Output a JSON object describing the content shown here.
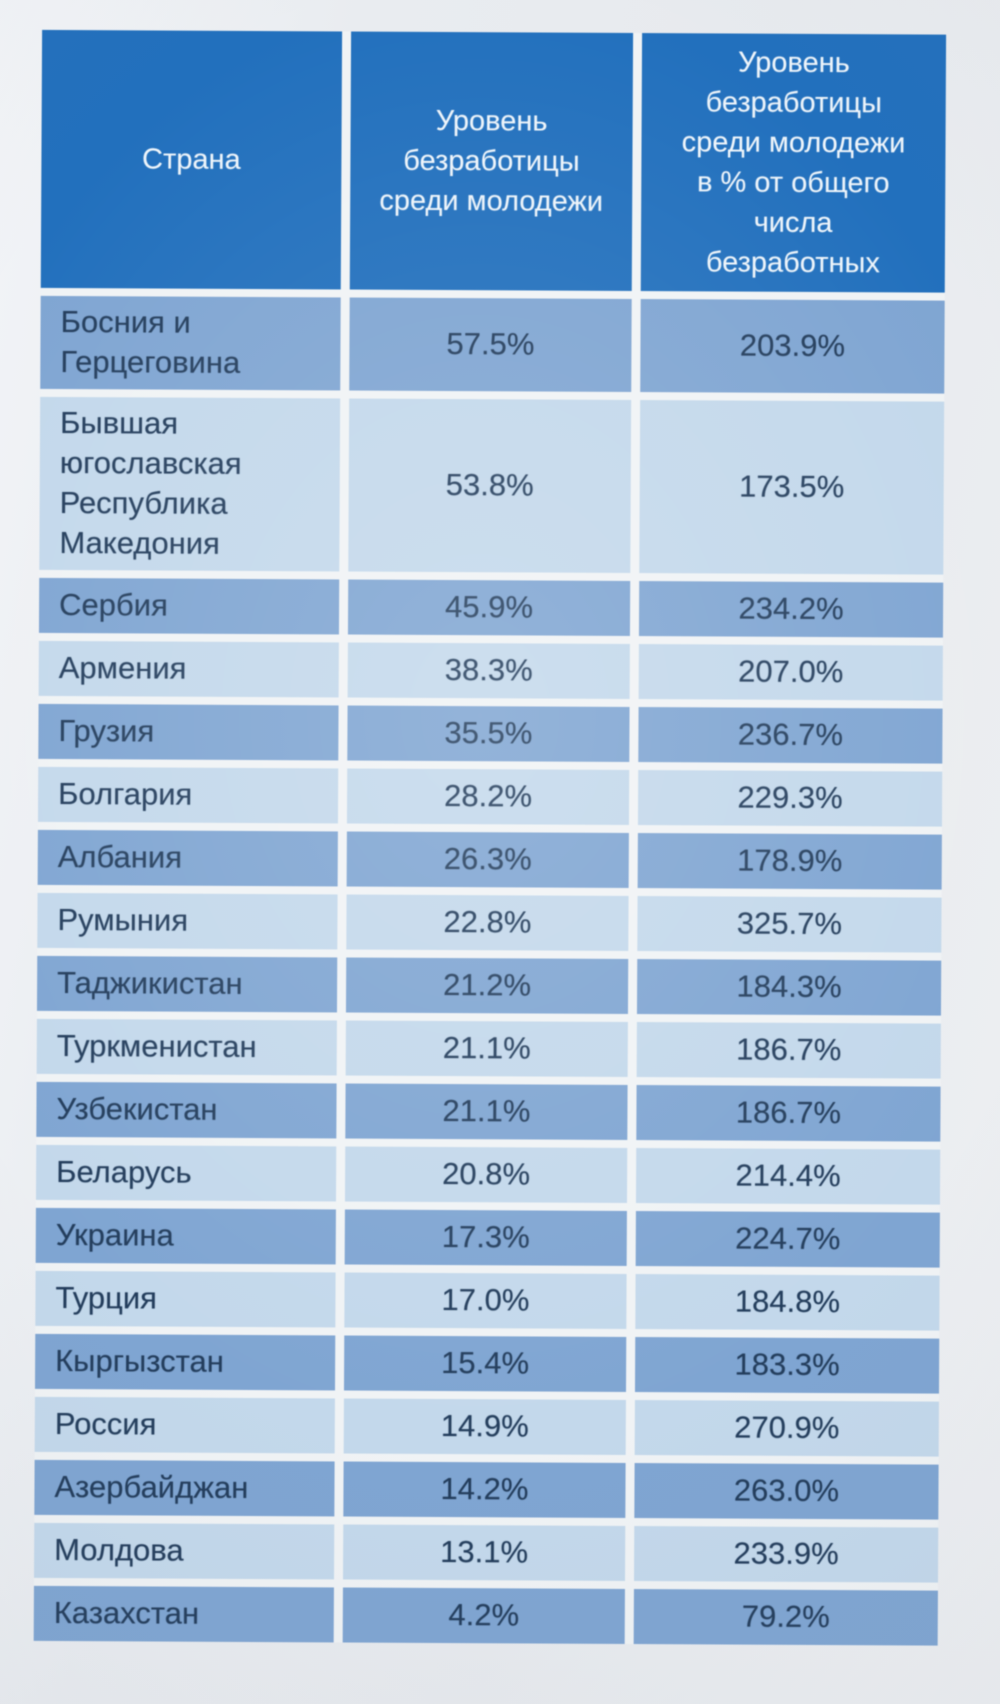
{
  "colors": {
    "page_bg": "#e9ecef",
    "gap_color": "#f0f3f5",
    "header_bg": "#2270bd",
    "header_text": "#eef5fb",
    "row_dark_bg": "#7fa5d2",
    "row_light_bg": "#c3d8eb",
    "cell_text": "#233d5c"
  },
  "chart_data": {
    "type": "table",
    "columns": [
      "Страна",
      "Уровень безработицы среди молодежи",
      "Уровень безработицы среди молодежи в % от общего числа безработных"
    ],
    "rows": [
      [
        "Босния и Герцеговина",
        "57.5%",
        "203.9%"
      ],
      [
        "Бывшая югославская Республика Македония",
        "53.8%",
        "173.5%"
      ],
      [
        "Сербия",
        "45.9%",
        "234.2%"
      ],
      [
        "Армения",
        "38.3%",
        "207.0%"
      ],
      [
        "Грузия",
        "35.5%",
        "236.7%"
      ],
      [
        "Болгария",
        "28.2%",
        "229.3%"
      ],
      [
        "Албания",
        "26.3%",
        "178.9%"
      ],
      [
        "Румыния",
        "22.8%",
        "325.7%"
      ],
      [
        "Таджикистан",
        "21.2%",
        "184.3%"
      ],
      [
        "Туркменистан",
        "21.1%",
        "186.7%"
      ],
      [
        "Узбекистан",
        "21.1%",
        "186.7%"
      ],
      [
        "Беларусь",
        "20.8%",
        "214.4%"
      ],
      [
        "Украина",
        "17.3%",
        "224.7%"
      ],
      [
        "Турция",
        "17.0%",
        "184.8%"
      ],
      [
        "Кыргызстан",
        "15.4%",
        "183.3%"
      ],
      [
        "Россия",
        "14.9%",
        "270.9%"
      ],
      [
        "Азербайджан",
        "14.2%",
        "263.0%"
      ],
      [
        "Молдова",
        "13.1%",
        "233.9%"
      ],
      [
        "Казахстан",
        "4.2%",
        "79.2%"
      ]
    ],
    "youth_unemployment_values": [
      57.5,
      53.8,
      45.9,
      38.3,
      35.5,
      28.2,
      26.3,
      22.8,
      21.2,
      21.1,
      21.1,
      20.8,
      17.3,
      17.0,
      15.4,
      14.9,
      14.2,
      13.1,
      4.2
    ],
    "share_of_total_values": [
      203.9,
      173.5,
      234.2,
      207.0,
      236.7,
      229.3,
      178.9,
      325.7,
      184.3,
      186.7,
      186.7,
      214.4,
      224.7,
      184.8,
      183.3,
      270.9,
      263.0,
      233.9,
      79.2
    ]
  }
}
